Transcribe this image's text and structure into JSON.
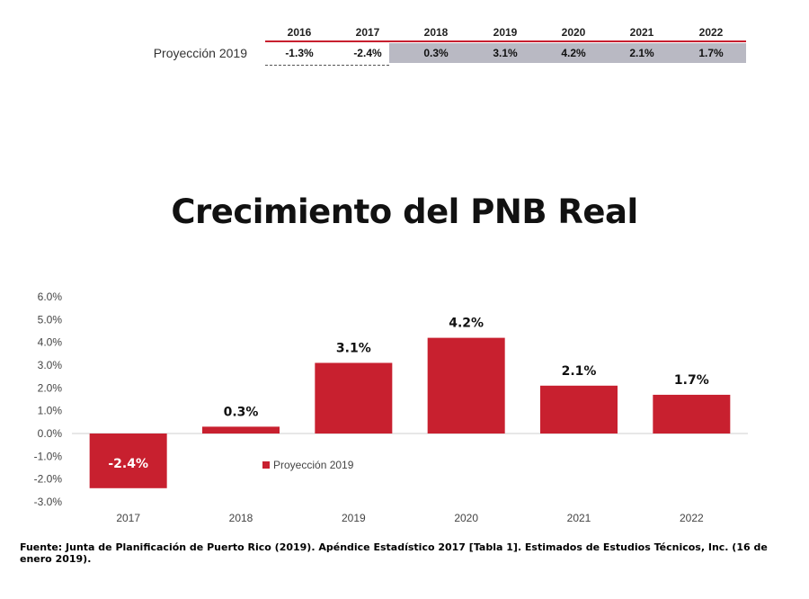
{
  "table": {
    "row_label": "Proyección 2019",
    "years": [
      "2016",
      "2017",
      "2018",
      "2019",
      "2020",
      "2021",
      "2022"
    ],
    "values": [
      "-1.3%",
      "-2.4%",
      "0.3%",
      "3.1%",
      "4.2%",
      "2.1%",
      "1.7%"
    ]
  },
  "title": "Crecimiento del PNB Real",
  "chart_data": {
    "type": "bar",
    "categories": [
      "2017",
      "2018",
      "2019",
      "2020",
      "2021",
      "2022"
    ],
    "series": [
      {
        "name": "Proyección 2019",
        "values": [
          -2.4,
          0.3,
          3.1,
          4.2,
          2.1,
          1.7
        ]
      }
    ],
    "data_labels": [
      "-2.4%",
      "0.3%",
      "3.1%",
      "4.2%",
      "2.1%",
      "1.7%"
    ],
    "yticks": [
      "6.0%",
      "5.0%",
      "4.0%",
      "3.0%",
      "2.0%",
      "1.0%",
      "0.0%",
      "-1.0%",
      "-2.0%",
      "-3.0%"
    ],
    "ylim": [
      -3,
      6
    ],
    "grid": false,
    "legend_position": "inside-center-left",
    "bar_color": "#c8202f"
  },
  "footnote": "Fuente: Junta de Planificación de Puerto Rico (2019). Apéndice Estadístico 2017 [Tabla 1]. Estimados de Estudios Técnicos, Inc. (16 de enero 2019)."
}
